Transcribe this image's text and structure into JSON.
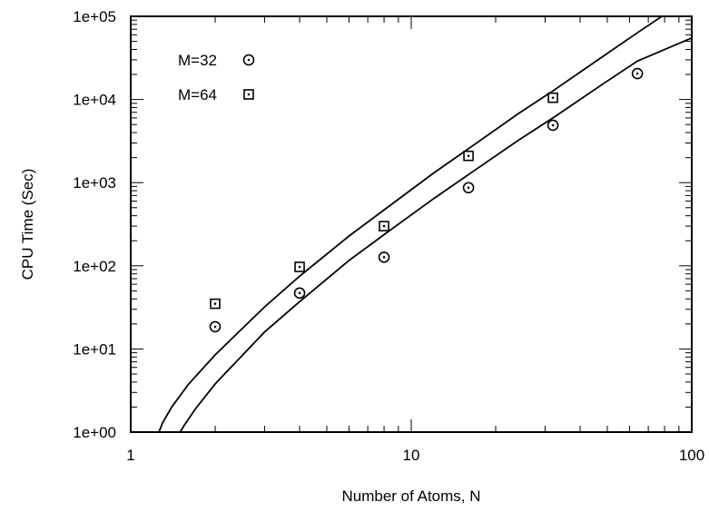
{
  "chart_data": {
    "type": "scatter",
    "title": "",
    "xlabel": "Number of Atoms, N",
    "ylabel": "CPU Time (Sec)",
    "xscale": "log",
    "yscale": "log",
    "xlim": [
      1,
      100
    ],
    "ylim": [
      1,
      100000
    ],
    "x_ticks": [
      {
        "value": 1,
        "label": "1"
      },
      {
        "value": 10,
        "label": "10"
      },
      {
        "value": 100,
        "label": "100"
      }
    ],
    "y_ticks": [
      {
        "value": 1,
        "label": "1e+00"
      },
      {
        "value": 10,
        "label": "1e+01"
      },
      {
        "value": 100,
        "label": "1e+02"
      },
      {
        "value": 1000,
        "label": "1e+03"
      },
      {
        "value": 10000,
        "label": "1e+04"
      },
      {
        "value": 100000,
        "label": "1e+05"
      }
    ],
    "legend_position": "top-left",
    "grid": false,
    "series": [
      {
        "name": "M=32",
        "marker": "circle-dot",
        "x": [
          2,
          4,
          8,
          16,
          32,
          64
        ],
        "y": [
          18.5,
          47,
          127,
          870,
          4900,
          20500
        ]
      },
      {
        "name": "M=64",
        "marker": "square-dot",
        "x": [
          2,
          4,
          8,
          16,
          32
        ],
        "y": [
          35,
          97,
          300,
          2100,
          10500
        ]
      }
    ],
    "fit_curves": [
      {
        "for_series": "M=64",
        "x": [
          1.26,
          1.3,
          1.4,
          1.6,
          2,
          3,
          4,
          6,
          8,
          12,
          16,
          24,
          32,
          48,
          64,
          80,
          96
        ],
        "y": [
          1.0,
          1.3,
          2.0,
          3.7,
          8.5,
          32,
          75,
          228,
          470,
          1300,
          2560,
          6700,
          12700,
          32600,
          63500,
          105000,
          158000
        ]
      },
      {
        "for_series": "M=32",
        "x": [
          1.5,
          1.55,
          1.7,
          2,
          3,
          4,
          6,
          8,
          12,
          16,
          24,
          32,
          48,
          64,
          100
        ],
        "y": [
          1.0,
          1.2,
          1.9,
          3.8,
          16,
          37,
          116,
          237,
          640,
          1250,
          3200,
          6000,
          15200,
          29000,
          55000
        ]
      }
    ]
  }
}
